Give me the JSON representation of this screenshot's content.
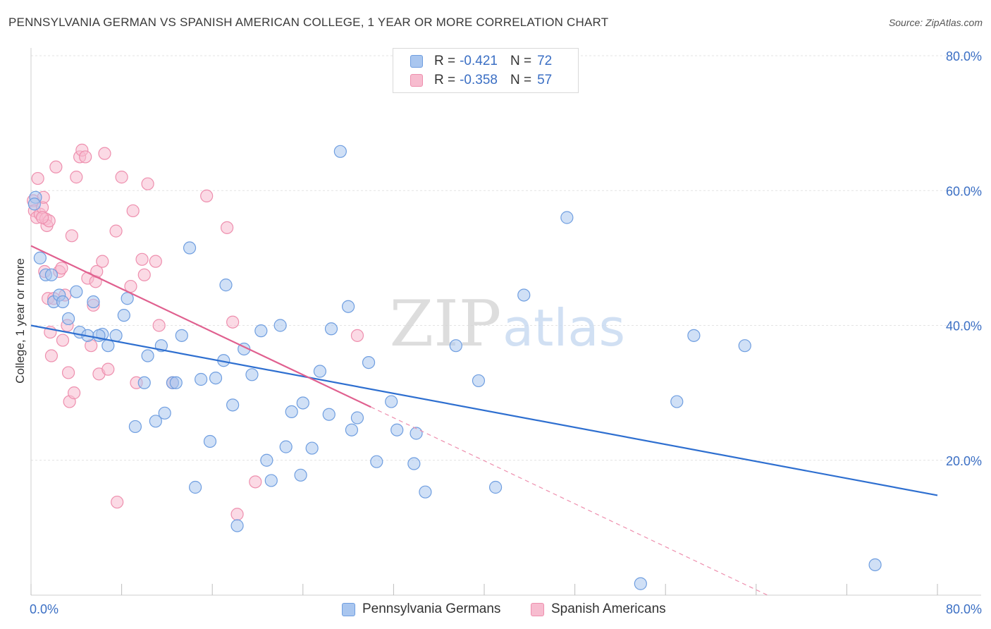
{
  "header": {
    "title": "PENNSYLVANIA GERMAN VS SPANISH AMERICAN COLLEGE, 1 YEAR OR MORE CORRELATION CHART",
    "source": "Source: ZipAtlas.com"
  },
  "legend_top": [
    {
      "r_label": "R =",
      "r_value": "-0.421",
      "n_label": "N =",
      "n_value": "72"
    },
    {
      "r_label": "R =",
      "r_value": "-0.358",
      "n_label": "N =",
      "n_value": "57"
    }
  ],
  "watermark": {
    "zip": "ZIP",
    "atlas": "atlas"
  },
  "colors": {
    "blue_fill": "#a9c6ef",
    "blue_stroke": "#6f9ee0",
    "blue_line": "#2e6fd0",
    "pink_fill": "#f7bccf",
    "pink_stroke": "#ee8fae",
    "pink_line": "#e0608f",
    "grid": "#e3e3e3",
    "tick_text": "#3b6fc4"
  },
  "chart_data": {
    "type": "scatter",
    "title": "PENNSYLVANIA GERMAN VS SPANISH AMERICAN COLLEGE, 1 YEAR OR MORE CORRELATION CHART",
    "xlabel": "",
    "ylabel": "College, 1 year or more",
    "xlim": [
      0,
      80
    ],
    "ylim": [
      0,
      80
    ],
    "x_tick_labels": [
      "0.0%",
      "80.0%"
    ],
    "y_tick_labels": [
      "20.0%",
      "40.0%",
      "60.0%",
      "80.0%"
    ],
    "y_ticks": [
      20,
      40,
      60,
      80
    ],
    "legend_placement": "bottom-center",
    "series": [
      {
        "name": "Pennsylvania Germans",
        "color": "#a9c6ef",
        "r": -0.421,
        "n": 72,
        "trend": {
          "x": [
            0,
            80
          ],
          "y": [
            40.0,
            14.8
          ]
        },
        "points": [
          [
            0.4,
            59.0
          ],
          [
            0.8,
            50.0
          ],
          [
            1.3,
            47.5
          ],
          [
            1.8,
            47.5
          ],
          [
            2.0,
            43.5
          ],
          [
            2.5,
            44.5
          ],
          [
            2.8,
            43.5
          ],
          [
            3.3,
            41.0
          ],
          [
            4.0,
            45.0
          ],
          [
            4.3,
            39.0
          ],
          [
            5.0,
            38.5
          ],
          [
            5.5,
            43.5
          ],
          [
            6.3,
            38.7
          ],
          [
            6.8,
            37.0
          ],
          [
            7.5,
            38.5
          ],
          [
            8.2,
            41.5
          ],
          [
            8.5,
            44.0
          ],
          [
            9.2,
            25.0
          ],
          [
            10.0,
            31.5
          ],
          [
            10.3,
            35.5
          ],
          [
            11.0,
            25.8
          ],
          [
            11.5,
            37.0
          ],
          [
            11.8,
            27.0
          ],
          [
            12.5,
            31.5
          ],
          [
            12.8,
            31.5
          ],
          [
            13.3,
            38.5
          ],
          [
            14.0,
            51.5
          ],
          [
            14.5,
            16.0
          ],
          [
            15.0,
            32.0
          ],
          [
            15.8,
            22.8
          ],
          [
            16.3,
            32.2
          ],
          [
            17.0,
            34.8
          ],
          [
            17.2,
            46.0
          ],
          [
            17.8,
            28.2
          ],
          [
            18.2,
            10.3
          ],
          [
            18.8,
            36.5
          ],
          [
            19.5,
            32.7
          ],
          [
            20.3,
            39.2
          ],
          [
            20.8,
            20.0
          ],
          [
            21.2,
            17.0
          ],
          [
            22.0,
            40.0
          ],
          [
            22.5,
            22.0
          ],
          [
            23.0,
            27.2
          ],
          [
            23.8,
            17.8
          ],
          [
            24.0,
            28.5
          ],
          [
            24.8,
            21.8
          ],
          [
            25.5,
            33.2
          ],
          [
            26.3,
            26.8
          ],
          [
            27.3,
            65.8
          ],
          [
            28.3,
            24.5
          ],
          [
            28.8,
            26.3
          ],
          [
            29.8,
            34.5
          ],
          [
            30.5,
            19.8
          ],
          [
            31.8,
            28.7
          ],
          [
            32.3,
            24.5
          ],
          [
            33.8,
            19.5
          ],
          [
            34.0,
            24.0
          ],
          [
            34.8,
            15.3
          ],
          [
            37.5,
            37.0
          ],
          [
            39.5,
            31.8
          ],
          [
            41.0,
            16.0
          ],
          [
            43.5,
            44.5
          ],
          [
            47.3,
            56.0
          ],
          [
            53.8,
            1.7
          ],
          [
            57.0,
            28.7
          ],
          [
            58.5,
            38.5
          ],
          [
            63.0,
            37.0
          ],
          [
            74.5,
            4.5
          ],
          [
            0.3,
            58.0
          ],
          [
            26.5,
            39.5
          ],
          [
            28.0,
            42.8
          ],
          [
            6.0,
            38.5
          ]
        ]
      },
      {
        "name": "Spanish Americans",
        "color": "#f7bccf",
        "r": -0.358,
        "n": 57,
        "trend": {
          "x": [
            0,
            30
          ],
          "y": [
            51.8,
            27.9
          ]
        },
        "trend_dashed": {
          "x": [
            30,
            65
          ],
          "y": [
            27.9,
            0.0
          ]
        },
        "points": [
          [
            0.2,
            58.5
          ],
          [
            0.3,
            57.0
          ],
          [
            0.5,
            56.0
          ],
          [
            0.6,
            61.8
          ],
          [
            0.8,
            56.5
          ],
          [
            1.0,
            57.5
          ],
          [
            1.1,
            59.0
          ],
          [
            1.2,
            48.0
          ],
          [
            1.3,
            55.8
          ],
          [
            1.4,
            54.8
          ],
          [
            1.5,
            44.0
          ],
          [
            1.6,
            55.5
          ],
          [
            1.7,
            39.0
          ],
          [
            1.8,
            35.5
          ],
          [
            2.0,
            44.0
          ],
          [
            2.2,
            63.5
          ],
          [
            2.5,
            48.0
          ],
          [
            2.7,
            48.5
          ],
          [
            2.8,
            37.8
          ],
          [
            3.0,
            44.5
          ],
          [
            3.2,
            40.0
          ],
          [
            3.3,
            33.0
          ],
          [
            3.4,
            28.7
          ],
          [
            3.6,
            53.3
          ],
          [
            3.8,
            30.0
          ],
          [
            4.0,
            62.0
          ],
          [
            4.3,
            65.0
          ],
          [
            4.5,
            66.0
          ],
          [
            4.8,
            65.0
          ],
          [
            5.0,
            47.0
          ],
          [
            5.3,
            37.0
          ],
          [
            5.5,
            43.0
          ],
          [
            5.7,
            46.5
          ],
          [
            5.8,
            48.0
          ],
          [
            6.0,
            32.8
          ],
          [
            6.3,
            49.5
          ],
          [
            6.5,
            65.5
          ],
          [
            6.8,
            33.5
          ],
          [
            7.5,
            54.0
          ],
          [
            7.6,
            13.8
          ],
          [
            8.0,
            62.0
          ],
          [
            8.8,
            45.8
          ],
          [
            9.0,
            57.0
          ],
          [
            9.3,
            31.5
          ],
          [
            9.8,
            49.8
          ],
          [
            10.0,
            47.5
          ],
          [
            10.3,
            61.0
          ],
          [
            11.0,
            49.5
          ],
          [
            11.3,
            40.0
          ],
          [
            12.5,
            31.5
          ],
          [
            15.5,
            59.2
          ],
          [
            17.3,
            54.5
          ],
          [
            17.8,
            40.5
          ],
          [
            18.2,
            12.0
          ],
          [
            19.8,
            16.8
          ],
          [
            28.8,
            38.5
          ],
          [
            1.0,
            56.0
          ]
        ]
      }
    ]
  }
}
